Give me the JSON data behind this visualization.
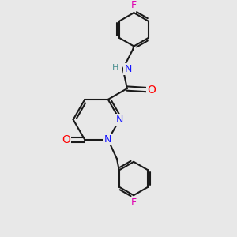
{
  "bg_color": "#e8e8e8",
  "line_color": "#1a1a1a",
  "bond_width": 1.5,
  "atom_colors": {
    "N": "#1414ff",
    "O": "#ff0000",
    "F": "#e000b0",
    "H": "#4a9090",
    "C": "#1a1a1a"
  },
  "font_size_atom": 9
}
